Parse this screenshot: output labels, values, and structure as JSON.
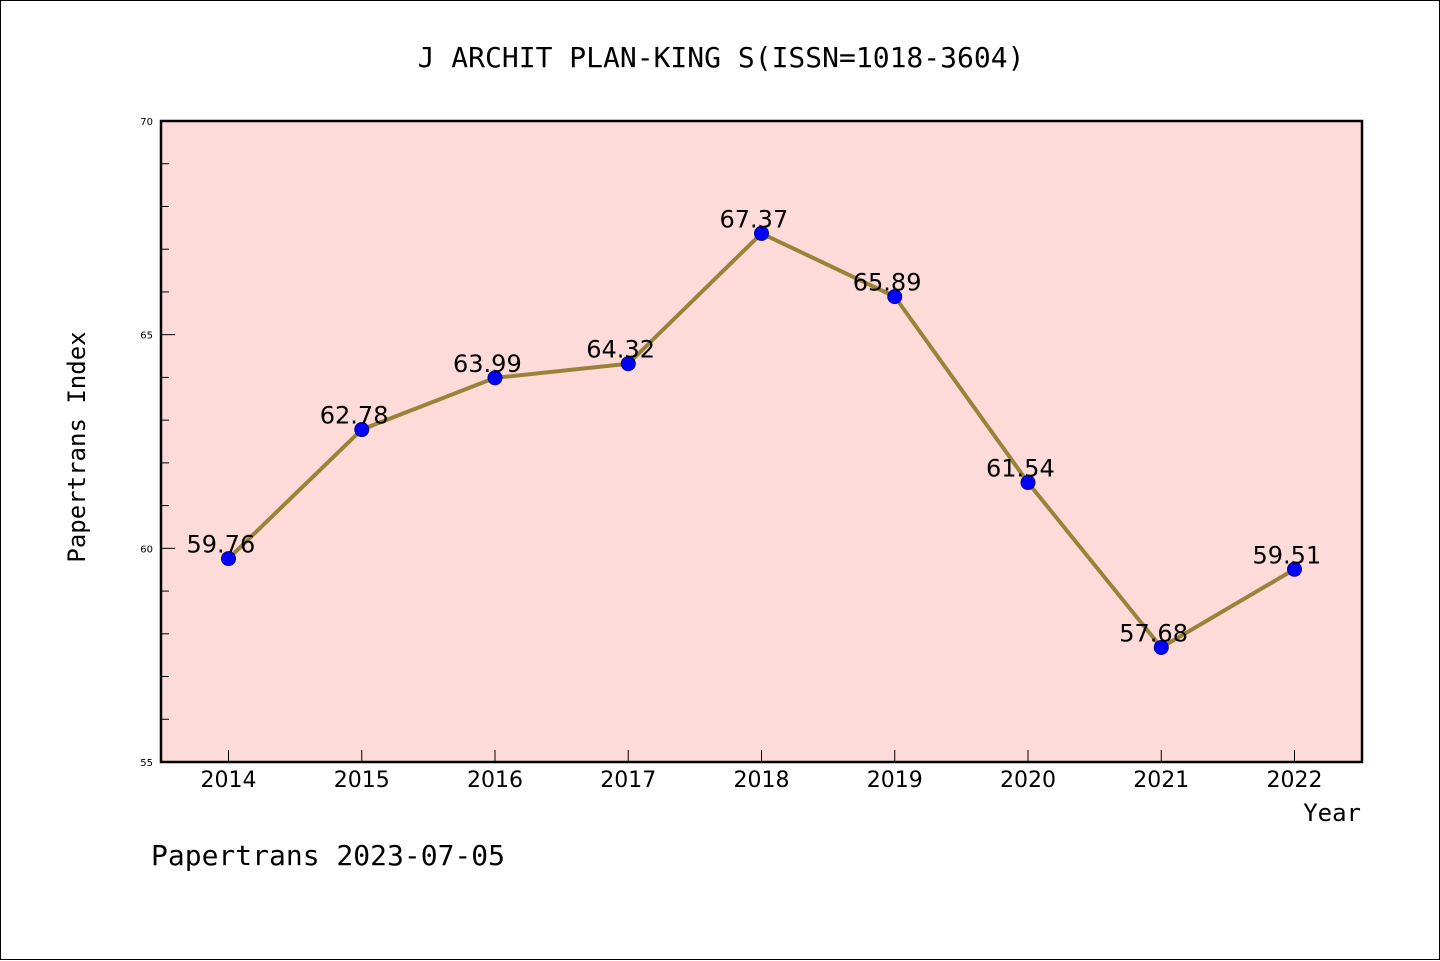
{
  "chart_data": {
    "type": "line",
    "title": "J ARCHIT PLAN-KING S(ISSN=1018-3604)",
    "xlabel": "Year",
    "ylabel": "Papertrans Index",
    "categories": [
      "2014",
      "2015",
      "2016",
      "2017",
      "2018",
      "2019",
      "2020",
      "2021",
      "2022"
    ],
    "series": [
      {
        "values": [
          59.76,
          62.78,
          63.99,
          64.32,
          67.37,
          65.89,
          61.54,
          57.68,
          59.51
        ]
      }
    ],
    "data_labels": [
      "59.76",
      "62.78",
      "63.99",
      "64.32",
      "67.37",
      "65.89",
      "61.54",
      "57.68",
      "59.51"
    ],
    "ylim": [
      55,
      70
    ],
    "yticks": [
      55,
      60,
      65,
      70
    ],
    "y_minor_step": 1,
    "grid": false,
    "legend": "none",
    "plot_background": "#fddbd9",
    "line_color": "#9a8338",
    "marker_color": "#0000ff"
  },
  "footer": {
    "text": "Papertrans 2023-07-05"
  }
}
